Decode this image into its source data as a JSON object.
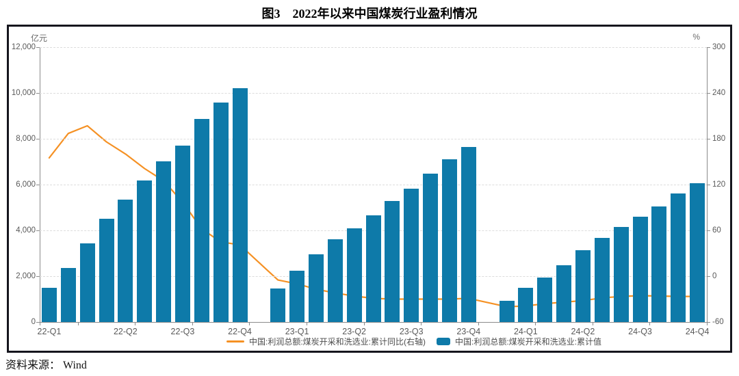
{
  "title": "图3　2022年以来中国煤炭行业盈利情况",
  "source_note": "资料来源： Wind",
  "legend": {
    "line_label": "中国:利润总额:煤炭开采和洗选业:累计同比(右轴)",
    "bar_label": "中国:利润总额:煤炭开采和洗选业:累计值"
  },
  "chart_data": {
    "type": "combo-bar-line",
    "title": "图3 2022年以来中国煤炭行业盈利情况",
    "grid": "horizontal-dashed",
    "legend_position": "bottom-center",
    "left_axis": {
      "unit": "亿元",
      "min": 0,
      "max": 12000,
      "tick_step": 2000,
      "tick_labels": [
        "0",
        "2,000",
        "4,000",
        "6,000",
        "8,000",
        "10,000",
        "12,000"
      ],
      "tick_values": [
        0,
        2000,
        4000,
        6000,
        8000,
        10000,
        12000
      ]
    },
    "right_axis": {
      "unit": "%",
      "min": -60,
      "max": 300,
      "tick_step": 60,
      "tick_labels": [
        "-60",
        "0",
        "60",
        "120",
        "180",
        "240",
        "300"
      ],
      "tick_values": [
        -60,
        0,
        60,
        120,
        180,
        240,
        300
      ]
    },
    "total_slots": 35,
    "x_quarter_labels": [
      {
        "slot": 0,
        "label": "22-Q1"
      },
      {
        "slot": 4,
        "label": "22-Q2"
      },
      {
        "slot": 7,
        "label": "22-Q3"
      },
      {
        "slot": 10,
        "label": "22-Q4"
      },
      {
        "slot": 13,
        "label": "23-Q1"
      },
      {
        "slot": 16,
        "label": "23-Q2"
      },
      {
        "slot": 19,
        "label": "23-Q3"
      },
      {
        "slot": 22,
        "label": "23-Q4"
      },
      {
        "slot": 25,
        "label": "24-Q1"
      },
      {
        "slot": 28,
        "label": "24-Q2"
      },
      {
        "slot": 31,
        "label": "24-Q3"
      },
      {
        "slot": 34,
        "label": "24-Q4"
      }
    ],
    "quarter_boundary_tick_slots": [
      0,
      2,
      5,
      8,
      11,
      14,
      17,
      20,
      23,
      26,
      29,
      32,
      35
    ],
    "bar_series": {
      "name": "中国:利润总额:煤炭开采和洗选业:累计值",
      "axis": "left",
      "color": "#0e7aa9",
      "points": [
        {
          "slot": 0,
          "month": "2022-02",
          "value": 1480
        },
        {
          "slot": 1,
          "month": "2022-03",
          "value": 2360
        },
        {
          "slot": 2,
          "month": "2022-04",
          "value": 3430
        },
        {
          "slot": 3,
          "month": "2022-05",
          "value": 4510
        },
        {
          "slot": 4,
          "month": "2022-06",
          "value": 5330
        },
        {
          "slot": 5,
          "month": "2022-07",
          "value": 6180
        },
        {
          "slot": 6,
          "month": "2022-08",
          "value": 7010
        },
        {
          "slot": 7,
          "month": "2022-09",
          "value": 7700
        },
        {
          "slot": 8,
          "month": "2022-10",
          "value": 8860
        },
        {
          "slot": 9,
          "month": "2022-11",
          "value": 9590
        },
        {
          "slot": 10,
          "month": "2022-12",
          "value": 10200
        },
        {
          "slot": 12,
          "month": "2023-02",
          "value": 1450
        },
        {
          "slot": 13,
          "month": "2023-03",
          "value": 2230
        },
        {
          "slot": 14,
          "month": "2023-04",
          "value": 2950
        },
        {
          "slot": 15,
          "month": "2023-05",
          "value": 3600
        },
        {
          "slot": 16,
          "month": "2023-06",
          "value": 4100
        },
        {
          "slot": 17,
          "month": "2023-07",
          "value": 4660
        },
        {
          "slot": 18,
          "month": "2023-08",
          "value": 5270
        },
        {
          "slot": 19,
          "month": "2023-09",
          "value": 5820
        },
        {
          "slot": 20,
          "month": "2023-10",
          "value": 6490
        },
        {
          "slot": 21,
          "month": "2023-11",
          "value": 7110
        },
        {
          "slot": 22,
          "month": "2023-12",
          "value": 7630
        },
        {
          "slot": 24,
          "month": "2024-02",
          "value": 930
        },
        {
          "slot": 25,
          "month": "2024-03",
          "value": 1480
        },
        {
          "slot": 26,
          "month": "2024-04",
          "value": 1950
        },
        {
          "slot": 27,
          "month": "2024-05",
          "value": 2480
        },
        {
          "slot": 28,
          "month": "2024-06",
          "value": 3130
        },
        {
          "slot": 29,
          "month": "2024-07",
          "value": 3680
        },
        {
          "slot": 30,
          "month": "2024-08",
          "value": 4160
        },
        {
          "slot": 31,
          "month": "2024-09",
          "value": 4590
        },
        {
          "slot": 32,
          "month": "2024-10",
          "value": 5050
        },
        {
          "slot": 33,
          "month": "2024-11",
          "value": 5610
        },
        {
          "slot": 34,
          "month": "2024-12",
          "value": 6050
        }
      ]
    },
    "line_series": {
      "name": "中国:利润总额:煤炭开采和洗选业:累计同比(右轴)",
      "axis": "right",
      "color": "#f59124",
      "points": [
        {
          "slot": 0,
          "month": "2022-02",
          "value": 155
        },
        {
          "slot": 1,
          "month": "2022-03",
          "value": 187
        },
        {
          "slot": 2,
          "month": "2022-04",
          "value": 197
        },
        {
          "slot": 3,
          "month": "2022-05",
          "value": 176
        },
        {
          "slot": 4,
          "month": "2022-06",
          "value": 160
        },
        {
          "slot": 5,
          "month": "2022-07",
          "value": 141
        },
        {
          "slot": 6,
          "month": "2022-08",
          "value": 125
        },
        {
          "slot": 7,
          "month": "2022-09",
          "value": 97
        },
        {
          "slot": 8,
          "month": "2022-10",
          "value": 62
        },
        {
          "slot": 9,
          "month": "2022-11",
          "value": 45
        },
        {
          "slot": 10,
          "month": "2022-12",
          "value": 41
        },
        {
          "slot": 12,
          "month": "2023-02",
          "value": -5
        },
        {
          "slot": 13,
          "month": "2023-03",
          "value": -10
        },
        {
          "slot": 14,
          "month": "2023-04",
          "value": -17
        },
        {
          "slot": 15,
          "month": "2023-05",
          "value": -22
        },
        {
          "slot": 16,
          "month": "2023-06",
          "value": -26
        },
        {
          "slot": 17,
          "month": "2023-07",
          "value": -29
        },
        {
          "slot": 18,
          "month": "2023-08",
          "value": -30
        },
        {
          "slot": 19,
          "month": "2023-09",
          "value": -30
        },
        {
          "slot": 20,
          "month": "2023-10",
          "value": -30
        },
        {
          "slot": 21,
          "month": "2023-11",
          "value": -30
        },
        {
          "slot": 22,
          "month": "2023-12",
          "value": -29
        },
        {
          "slot": 24,
          "month": "2024-02",
          "value": -40
        },
        {
          "slot": 25,
          "month": "2024-03",
          "value": -39
        },
        {
          "slot": 26,
          "month": "2024-04",
          "value": -36
        },
        {
          "slot": 27,
          "month": "2024-05",
          "value": -34
        },
        {
          "slot": 28,
          "month": "2024-06",
          "value": -32
        },
        {
          "slot": 29,
          "month": "2024-07",
          "value": -28.5
        },
        {
          "slot": 30,
          "month": "2024-08",
          "value": -26.5
        },
        {
          "slot": 31,
          "month": "2024-09",
          "value": -25.5
        },
        {
          "slot": 32,
          "month": "2024-10",
          "value": -26
        },
        {
          "slot": 33,
          "month": "2024-11",
          "value": -26.5
        },
        {
          "slot": 34,
          "month": "2024-12",
          "value": -26.5
        }
      ]
    }
  }
}
